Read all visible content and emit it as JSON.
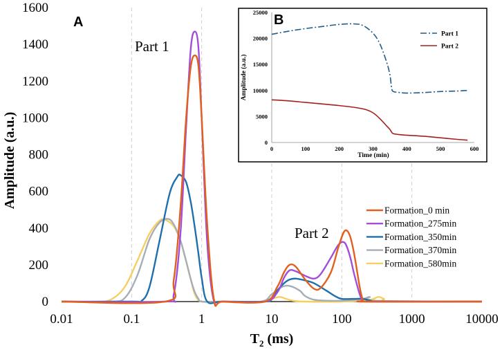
{
  "chart_data": [
    {
      "type": "line",
      "panel_label": "A",
      "xscale": "log",
      "xlim": [
        0.01,
        10000
      ],
      "ylim": [
        0,
        1600
      ],
      "xticks": [
        0.01,
        0.1,
        1,
        10,
        100,
        1000,
        10000
      ],
      "xtick_labels": [
        "0.01",
        "0.1",
        "1",
        "10",
        "100",
        "1000",
        "10000"
      ],
      "yticks": [
        0,
        200,
        400,
        600,
        800,
        1000,
        1200,
        1400,
        1600
      ],
      "ytick_labels": [
        "0",
        "200",
        "400",
        "600",
        "800",
        "1000",
        "1200",
        "1400",
        "1600"
      ],
      "xlabel_main": "T",
      "xlabel_sub": "2",
      "xlabel_unit": " (ms)",
      "ylabel": "Amplitude (a.u.)",
      "annotations": [
        "Part 1",
        "Part 2"
      ],
      "grid": "vertical-dashed",
      "legend_position": "right",
      "series": [
        {
          "name": "Formation_0 min",
          "color": "#E2601E",
          "dash": "solid",
          "x": [
            0.01,
            0.3,
            0.4,
            0.5,
            0.6,
            0.7,
            0.8,
            0.9,
            1.0,
            1.2,
            1.5,
            2,
            8,
            12,
            15,
            18,
            22,
            30,
            40,
            50,
            70,
            90,
            110,
            130,
            150,
            180,
            200,
            230,
            10000
          ],
          "y": [
            0,
            0,
            120,
            520,
            1000,
            1280,
            1340,
            1280,
            1000,
            420,
            10,
            0,
            0,
            80,
            160,
            200,
            190,
            120,
            70,
            75,
            160,
            300,
            385,
            360,
            260,
            80,
            10,
            0,
            0
          ]
        },
        {
          "name": "Formation_275min",
          "color": "#A24ED8",
          "dash": "solid",
          "x": [
            0.01,
            0.3,
            0.4,
            0.5,
            0.6,
            0.7,
            0.8,
            0.9,
            1.0,
            1.2,
            1.5,
            2,
            8,
            12,
            15,
            18,
            22,
            30,
            40,
            50,
            70,
            90,
            110,
            130,
            150,
            180,
            200,
            230,
            10000
          ],
          "y": [
            0,
            0,
            40,
            380,
            950,
            1380,
            1470,
            1380,
            1000,
            320,
            0,
            0,
            0,
            50,
            130,
            170,
            165,
            140,
            125,
            150,
            240,
            310,
            320,
            250,
            150,
            40,
            5,
            0,
            0
          ]
        },
        {
          "name": "Formation_350min",
          "color": "#1E6FAE",
          "dash": "solid",
          "x": [
            0.01,
            0.1,
            0.14,
            0.18,
            0.25,
            0.35,
            0.45,
            0.5,
            0.6,
            0.7,
            0.8,
            0.9,
            1.0,
            1.2,
            2,
            8,
            10,
            12,
            15,
            18,
            22,
            30,
            40,
            60,
            80,
            100,
            150,
            200,
            260,
            300,
            10000
          ],
          "y": [
            0,
            0,
            5,
            80,
            330,
            590,
            680,
            688,
            650,
            540,
            400,
            260,
            130,
            0,
            0,
            0,
            15,
            60,
            100,
            120,
            125,
            115,
            100,
            60,
            30,
            15,
            15,
            15,
            5,
            0,
            0
          ]
        },
        {
          "name": "Formation_370min",
          "color": "#A5AEB7",
          "dash": "solid",
          "x": [
            0.01,
            0.05,
            0.08,
            0.12,
            0.18,
            0.25,
            0.33,
            0.4,
            0.5,
            0.6,
            0.7,
            0.8,
            0.9,
            1.0,
            2,
            7,
            10,
            14,
            18,
            25,
            30,
            40,
            60,
            100,
            200,
            250,
            300,
            10000
          ],
          "y": [
            0,
            0,
            20,
            140,
            340,
            430,
            450,
            420,
            330,
            220,
            120,
            50,
            15,
            0,
            0,
            0,
            40,
            80,
            85,
            60,
            30,
            10,
            5,
            5,
            15,
            25,
            5,
            0
          ]
        },
        {
          "name": "Formation_580min",
          "color": "#F7CF60",
          "dash": "solid",
          "x": [
            0.01,
            0.03,
            0.05,
            0.08,
            0.12,
            0.18,
            0.25,
            0.3,
            0.4,
            0.5,
            0.6,
            0.7,
            0.8,
            1.0,
            2,
            8,
            10,
            13,
            16,
            20,
            30,
            100,
            250,
            330,
            400,
            500,
            10000
          ],
          "y": [
            0,
            0,
            10,
            80,
            220,
            370,
            440,
            445,
            410,
            330,
            220,
            120,
            40,
            0,
            0,
            0,
            15,
            25,
            15,
            5,
            0,
            0,
            10,
            25,
            15,
            0,
            0
          ]
        }
      ]
    },
    {
      "type": "line",
      "panel_label": "B",
      "xlim": [
        0,
        600
      ],
      "ylim": [
        0,
        25000
      ],
      "xticks": [
        0,
        100,
        200,
        300,
        400,
        500,
        600
      ],
      "xtick_labels": [
        "0",
        "100",
        "200",
        "300",
        "400",
        "500",
        "600"
      ],
      "yticks": [
        0,
        5000,
        10000,
        15000,
        20000,
        25000
      ],
      "ytick_labels": [
        "0",
        "5000",
        "10000",
        "15000",
        "20000",
        "25000"
      ],
      "xlabel": "Time (min)",
      "ylabel": "Amplitude (a.u.)",
      "legend_position": "top-right",
      "series": [
        {
          "name": "Part 1",
          "color": "#1F5C8C",
          "dash": "dashdot",
          "x": [
            0,
            50,
            100,
            150,
            200,
            240,
            270,
            300,
            320,
            340,
            350,
            355,
            360,
            380,
            400,
            450,
            500,
            550,
            580
          ],
          "y": [
            20800,
            21400,
            21900,
            22300,
            22700,
            22800,
            22500,
            21000,
            19000,
            15500,
            13000,
            10500,
            9800,
            9600,
            9500,
            9600,
            9800,
            9900,
            10000
          ]
        },
        {
          "name": "Part 2",
          "color": "#A3201A",
          "dash": "solid",
          "x": [
            0,
            50,
            100,
            150,
            200,
            250,
            280,
            300,
            320,
            340,
            350,
            355,
            360,
            380,
            400,
            450,
            500,
            550,
            580
          ],
          "y": [
            8200,
            8000,
            7700,
            7400,
            7100,
            6700,
            6300,
            5700,
            4600,
            3200,
            2500,
            2000,
            1700,
            1500,
            1400,
            1200,
            900,
            600,
            450
          ]
        }
      ]
    }
  ]
}
